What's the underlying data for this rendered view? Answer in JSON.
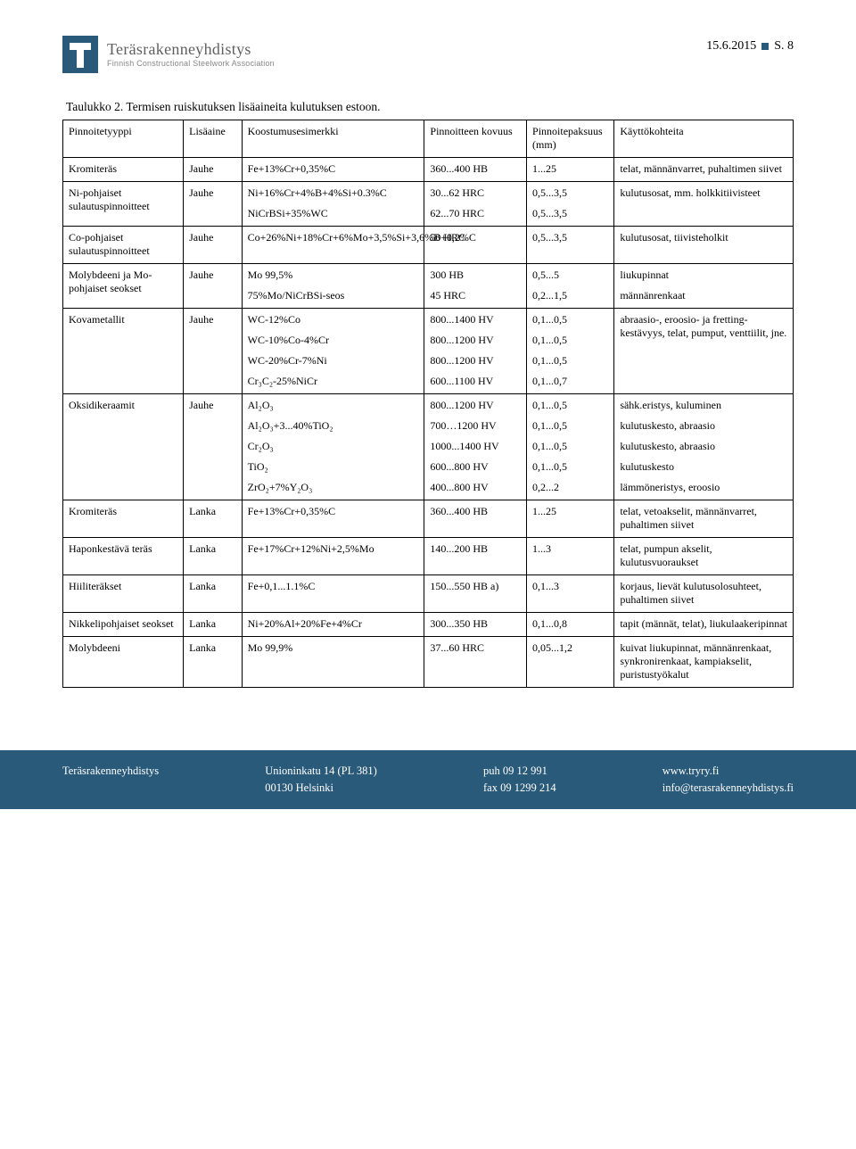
{
  "header": {
    "org_main": "Teräsrakenneyhdistys",
    "org_sub": "Finnish Constructional Steelwork Association",
    "date": "15.6.2015",
    "page": "S. 8"
  },
  "table": {
    "caption": "Taulukko 2. Termisen ruiskutuksen lisäaineita kulutuksen estoon.",
    "headers": {
      "c1": "Pinnoitetyyppi",
      "c2": "Lisäaine",
      "c3": "Koostumusesimerkki",
      "c4": "Pinnoitteen kovuus",
      "c5": "Pinnoitepaksuus (mm)",
      "c6": "Käyttökohteita"
    },
    "rows": [
      {
        "c1": "Kromiteräs",
        "c2": "Jauhe",
        "c3": [
          "Fe+13%Cr+0,35%C"
        ],
        "c4": [
          "360...400 HB"
        ],
        "c5": [
          "1...25"
        ],
        "c6": [
          "telat, männänvarret, puhaltimen siivet"
        ]
      },
      {
        "c1": "Ni-pohjaiset sulautuspinnoitteet",
        "c2": "Jauhe",
        "c3": [
          "Ni+16%Cr+4%B+4%Si+0.3%C",
          "NiCrBSi+35%WC"
        ],
        "c4": [
          "30...62 HRC",
          "62...70 HRC"
        ],
        "c5": [
          "0,5...3,5",
          "0,5...3,5"
        ],
        "c6": [
          "kulutusosat, mm. holkkitiivisteet"
        ]
      },
      {
        "c1": "Co-pohjaiset sulautuspinnoitteet",
        "c2": "Jauhe",
        "c3": [
          "Co+26%Ni+18%Cr+6%Mo+3,5%Si+3,6%B+0,2%C"
        ],
        "c4": [
          "50 HRC"
        ],
        "c5": [
          "0,5...3,5"
        ],
        "c6": [
          "kulutusosat, tiivisteholkit"
        ]
      },
      {
        "c1": "Molybdeeni ja Mo-pohjaiset seokset",
        "c2": "Jauhe",
        "c3": [
          "Mo 99,5%",
          "75%Mo/NiCrBSi-seos"
        ],
        "c4": [
          "300 HB",
          "45 HRC"
        ],
        "c5": [
          "0,5...5",
          "0,2...1,5"
        ],
        "c6": [
          "liukupinnat",
          "männänrenkaat"
        ]
      },
      {
        "c1": "Kovametallit",
        "c2": "Jauhe",
        "c3": [
          "WC-12%Co",
          "WC-10%Co-4%Cr",
          "WC-20%Cr-7%Ni",
          "Cr₃C₂-25%NiCr"
        ],
        "c4": [
          "800...1400 HV",
          "800...1200 HV",
          "800...1200 HV",
          "600...1100 HV"
        ],
        "c5": [
          "0,1...0,5",
          "0,1...0,5",
          "0,1...0,5",
          "0,1...0,7"
        ],
        "c6": [
          "abraasio-, eroosio- ja fretting-kestävyys, telat, pumput, venttiilit, jne."
        ]
      },
      {
        "c1": "Oksidikeraamit",
        "c2": "Jauhe",
        "c3": [
          "Al₂O₃",
          "Al₂O₃+3...40%TiO₂",
          "Cr₂O₃",
          "TiO₂",
          "ZrO₂+7%Y₂O₃"
        ],
        "c4": [
          "800...1200 HV",
          "700…1200 HV",
          "1000...1400 HV",
          "600...800 HV",
          "400...800 HV"
        ],
        "c5": [
          "0,1...0,5",
          "0,1...0,5",
          "0,1...0,5",
          "0,1...0,5",
          "0,2...2"
        ],
        "c6": [
          "sähk.eristys, kuluminen",
          "kulutuskesto, abraasio",
          "kulutuskesto, abraasio",
          "kulutuskesto",
          "lämmöneristys, eroosio"
        ]
      },
      {
        "c1": "Kromiteräs",
        "c2": "Lanka",
        "c3": [
          "Fe+13%Cr+0,35%C"
        ],
        "c4": [
          "360...400 HB"
        ],
        "c5": [
          "1...25"
        ],
        "c6": [
          "telat, vetoakselit, männänvarret, puhaltimen siivet"
        ]
      },
      {
        "c1": "Haponkestävä teräs",
        "c2": "Lanka",
        "c3": [
          "Fe+17%Cr+12%Ni+2,5%Mo"
        ],
        "c4": [
          "140...200 HB"
        ],
        "c5": [
          "1...3"
        ],
        "c6": [
          "telat, pumpun akselit, kulutusvuoraukset"
        ]
      },
      {
        "c1": "Hiiliteräkset",
        "c2": "Lanka",
        "c3": [
          "Fe+0,1...1.1%C"
        ],
        "c4": [
          "150...550 HB a)"
        ],
        "c5": [
          "0,1...3"
        ],
        "c6": [
          "korjaus, lievät kulutusolosuhteet, puhaltimen siivet"
        ]
      },
      {
        "c1": "Nikkelipohjaiset seokset",
        "c2": "Lanka",
        "c3": [
          "Ni+20%Al+20%Fe+4%Cr"
        ],
        "c4": [
          "300...350 HB"
        ],
        "c5": [
          "0,1...0,8"
        ],
        "c6": [
          "tapit (männät, telat), liukulaakeripinnat"
        ]
      },
      {
        "c1": "Molybdeeni",
        "c2": "Lanka",
        "c3": [
          "Mo 99,9%"
        ],
        "c4": [
          "37...60 HRC"
        ],
        "c5": [
          "0,05...1,2"
        ],
        "c6": [
          "kuivat liukupinnat, männänrenkaat, synkronirenkaat, kampiakselit, puristustyökalut"
        ]
      }
    ]
  },
  "footer": {
    "org": "Teräsrakenneyhdistys",
    "addr1": "Unioninkatu 14 (PL 381)",
    "addr2": "00130 Helsinki",
    "phone": "puh 09 12 991",
    "fax": "fax 09 1299 214",
    "web": "www.tryry.fi",
    "email": "info@terasrakenneyhdistys.fi"
  },
  "colors": {
    "brand": "#2a5a7a",
    "text": "#000000",
    "background": "#ffffff"
  }
}
